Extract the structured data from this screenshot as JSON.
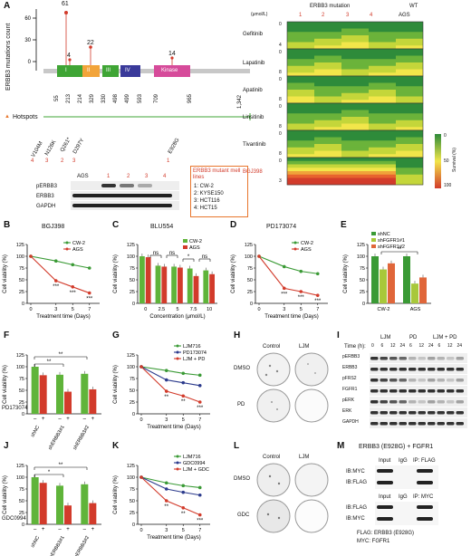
{
  "panels": {
    "A": {
      "label": "A",
      "ylabel": "ERBB3 mutations count",
      "peaks": [
        {
          "value": 61
        },
        {
          "value": 4
        },
        {
          "value": 22
        },
        {
          "value": 14
        }
      ],
      "peak_labels": [
        "61",
        "4",
        "22",
        "14"
      ],
      "positions": [
        "55",
        "213",
        "214",
        "329",
        "330",
        "498",
        "499",
        "593",
        "709",
        "965",
        "1,342"
      ],
      "domains": [
        {
          "name": "I",
          "color": "#3fa535"
        },
        {
          "name": "II",
          "color": "#f2a43a"
        },
        {
          "name": "III",
          "color": "#3fa535"
        },
        {
          "name": "IV",
          "color": "#3a3a9a"
        },
        {
          "name": "Kinase",
          "color": "#d64b9a"
        }
      ],
      "hotspots_label": "Hotspots",
      "hotspots": [
        "V104M",
        "N126K",
        "Q261*",
        "D297Y",
        "E928G"
      ],
      "hotspot_lines": [
        "4",
        "3",
        "2",
        "3",
        "1"
      ],
      "blot_labels": [
        "pERBB3",
        "ERBB3",
        "GAPDH"
      ],
      "blot_lanes": [
        "AGS",
        "1",
        "2",
        "3",
        "4"
      ],
      "mutant_box": {
        "title": "ERBB3 mutant mell lines",
        "lines": [
          "1: CW-2",
          "2: KYSE150",
          "3: HCT116",
          "4: HCT15"
        ]
      },
      "heatmap": {
        "header_mut": "ERBB3 mutation",
        "header_wt": "WT",
        "unit": "(μmol/L)",
        "columns": [
          "1",
          "2",
          "3",
          "4",
          "AGS"
        ],
        "drugs": [
          "Gefitinib",
          "Lapatinib",
          "Apatinib",
          "Linsitinib",
          "Tivantinib",
          "BGJ398"
        ],
        "conc": [
          [
            "0",
            "4"
          ],
          [
            "0",
            "8"
          ],
          [
            "0",
            "8"
          ],
          [
            "0",
            "8"
          ],
          [
            "0",
            "8"
          ],
          [
            "0",
            "3"
          ]
        ],
        "colorbar": [
          "0",
          "50",
          "100"
        ],
        "colorbar_title": "Survival (%)"
      }
    },
    "B": {
      "label": "B",
      "title": "BGJ398",
      "ylabel": "Cell viability (%)",
      "xlabel": "Treatment time (Days)"
    },
    "C": {
      "label": "C",
      "title": "BLU554",
      "ylabel": "Cell viability (%)",
      "xlabel": "Concentration (μmol/L)"
    },
    "D": {
      "label": "D",
      "title": "PD173074",
      "ylabel": "Cell viability (%)",
      "xlabel": "Treatment time (Days)"
    },
    "E": {
      "label": "E",
      "ylabel": "Cell viability (%)"
    },
    "F": {
      "label": "F",
      "ylabel": "Cell viability (%)",
      "treat": "PD173074",
      "minus": "–",
      "plus": "+"
    },
    "G": {
      "label": "G",
      "ylabel": "Cell viability (%)",
      "xlabel": "Treatment time (Days)"
    },
    "H": {
      "label": "H",
      "cols": [
        "Control",
        "LJM"
      ],
      "rows": [
        "DMSO",
        "PD"
      ]
    },
    "I": {
      "label": "I",
      "time_label": "Time (h):",
      "groups": [
        "LJM",
        "PD",
        "LJM + PD"
      ],
      "times": [
        "0",
        "6",
        "12",
        "24",
        "6",
        "12",
        "24",
        "6",
        "12",
        "24"
      ],
      "proteins": [
        "pERBB3",
        "ERBB3",
        "pFRS2",
        "FGFR1",
        "pERK",
        "ERK",
        "GAPDH"
      ]
    },
    "J": {
      "label": "J",
      "ylabel": "Cell viability (%)",
      "treat": "GDC0994",
      "minus": "–",
      "plus": "+"
    },
    "K": {
      "label": "K",
      "ylabel": "Cell viability (%)",
      "xlabel": "Treatment time (Days)"
    },
    "L": {
      "label": "L",
      "cols": [
        "Control",
        "LJM"
      ],
      "rows": [
        "DMSO",
        "GDC"
      ]
    },
    "M": {
      "label": "M",
      "title": "ERBB3 (E928G) + FGFR1",
      "top_header": [
        "Input",
        "IgG",
        "IP: FLAG"
      ],
      "top_rows": [
        "IB:MYC",
        "IB:FLAG"
      ],
      "bottom_header": [
        "Input",
        "IgG",
        "IP: MYC"
      ],
      "bottom_rows": [
        "IB:FLAG",
        "IB:MYC"
      ],
      "legend": [
        "FLAG: ERBB3 (E928G)",
        "MYC:  FGFR1"
      ]
    }
  },
  "chart_data": [
    {
      "panel": "B",
      "type": "line",
      "title": "BGJ398",
      "xlabel": "Treatment time (Days)",
      "ylabel": "Cell viability (%)",
      "x": [
        0,
        3,
        5,
        7
      ],
      "xticks": [
        "0",
        "3",
        "5",
        "7"
      ],
      "ylim": [
        0,
        125
      ],
      "yticks": [
        "0",
        "25",
        "50",
        "75",
        "100",
        "125"
      ],
      "series": [
        {
          "name": "CW-2",
          "color": "#3a9a35",
          "values": [
            100,
            90,
            82,
            75
          ]
        },
        {
          "name": "AGS",
          "color": "#d23b2b",
          "values": [
            100,
            48,
            35,
            22
          ]
        }
      ],
      "annotations": [
        "***",
        "***",
        "***"
      ]
    },
    {
      "panel": "C",
      "type": "bar",
      "title": "BLU554",
      "xlabel": "Concentration (μmol/L)",
      "ylabel": "Cell viability (%)",
      "categories": [
        "0",
        "2.5",
        "5",
        "7.5",
        "10"
      ],
      "ylim": [
        0,
        125
      ],
      "yticks": [
        "0",
        "25",
        "50",
        "75",
        "100",
        "125"
      ],
      "series": [
        {
          "name": "CW-2",
          "color": "#5fb43a",
          "values": [
            100,
            80,
            78,
            74,
            70
          ]
        },
        {
          "name": "AGS",
          "color": "#d23b2b",
          "values": [
            98,
            78,
            76,
            58,
            62
          ]
        }
      ],
      "annotations": [
        "ns",
        "ns",
        "*",
        "ns"
      ]
    },
    {
      "panel": "D",
      "type": "line",
      "title": "PD173074",
      "xlabel": "Treatment time (Days)",
      "ylabel": "Cell viability (%)",
      "x": [
        0,
        3,
        5,
        7
      ],
      "xticks": [
        "0",
        "3",
        "5",
        "7"
      ],
      "ylim": [
        0,
        125
      ],
      "yticks": [
        "0",
        "25",
        "50",
        "75",
        "100",
        "125"
      ],
      "series": [
        {
          "name": "CW-2",
          "color": "#3a9a35",
          "values": [
            100,
            78,
            68,
            63
          ]
        },
        {
          "name": "AGS",
          "color": "#d23b2b",
          "values": [
            100,
            32,
            25,
            17
          ]
        }
      ],
      "annotations": [
        "***",
        "***",
        "***"
      ]
    },
    {
      "panel": "E",
      "type": "bar",
      "ylabel": "Cell viability (%)",
      "categories": [
        "CW-2",
        "AGS"
      ],
      "ylim": [
        0,
        125
      ],
      "yticks": [
        "0",
        "25",
        "50",
        "75",
        "100",
        "125"
      ],
      "series": [
        {
          "name": "shNC",
          "color": "#3a9a35",
          "values": [
            100,
            100
          ]
        },
        {
          "name": "shFGFR1#1",
          "color": "#a8c83a",
          "values": [
            72,
            42
          ]
        },
        {
          "name": "shFGFR1#2",
          "color": "#e0663a",
          "values": [
            85,
            55
          ]
        }
      ],
      "annotations": [
        "**"
      ]
    },
    {
      "panel": "F",
      "type": "bar",
      "ylabel": "Cell viability (%)",
      "categories": [
        "shNC",
        "shERBB3#1",
        "shERBB3#2"
      ],
      "ylim": [
        0,
        125
      ],
      "yticks": [
        "0",
        "25",
        "50",
        "75",
        "100",
        "125"
      ],
      "series": [
        {
          "name": "–",
          "color": "#5fb43a",
          "values": [
            100,
            83,
            85
          ]
        },
        {
          "name": "+",
          "color": "#d23b2b",
          "values": [
            82,
            47,
            52
          ]
        }
      ],
      "annotations": [
        "**",
        "**"
      ]
    },
    {
      "panel": "G",
      "type": "line",
      "xlabel": "Treatment time (Days)",
      "ylabel": "Cell viability (%)",
      "x": [
        0,
        3,
        5,
        7
      ],
      "xticks": [
        "0",
        "3",
        "5",
        "7"
      ],
      "ylim": [
        0,
        125
      ],
      "yticks": [
        "0",
        "25",
        "50",
        "75",
        "100",
        "125"
      ],
      "series": [
        {
          "name": "LJM716",
          "color": "#3a9a35",
          "values": [
            100,
            92,
            86,
            82
          ]
        },
        {
          "name": "PD173074",
          "color": "#2b3a8c",
          "values": [
            100,
            72,
            66,
            60
          ]
        },
        {
          "name": "LJM + PD",
          "color": "#d23b2b",
          "values": [
            100,
            48,
            38,
            25
          ]
        }
      ],
      "annotations": [
        "**",
        "**",
        "***"
      ]
    },
    {
      "panel": "J",
      "type": "bar",
      "ylabel": "Cell viability (%)",
      "categories": [
        "shNC",
        "shERBB3#1",
        "shERBB3#2"
      ],
      "ylim": [
        0,
        125
      ],
      "yticks": [
        "0",
        "25",
        "50",
        "75",
        "100",
        "125"
      ],
      "series": [
        {
          "name": "–",
          "color": "#5fb43a",
          "values": [
            100,
            82,
            85
          ]
        },
        {
          "name": "+",
          "color": "#d23b2b",
          "values": [
            88,
            40,
            45
          ]
        }
      ],
      "annotations": [
        "*",
        "**"
      ]
    },
    {
      "panel": "K",
      "type": "line",
      "xlabel": "Treatment time (Days)",
      "ylabel": "Cell viability (%)",
      "x": [
        0,
        3,
        5,
        7
      ],
      "xticks": [
        "0",
        "3",
        "5",
        "7"
      ],
      "ylim": [
        0,
        125
      ],
      "yticks": [
        "0",
        "25",
        "50",
        "75",
        "100",
        "125"
      ],
      "series": [
        {
          "name": "LJM716",
          "color": "#3a9a35",
          "values": [
            100,
            88,
            82,
            78
          ]
        },
        {
          "name": "GDC0994",
          "color": "#2b3a8c",
          "values": [
            100,
            75,
            68,
            62
          ]
        },
        {
          "name": "LJM + GDC",
          "color": "#d23b2b",
          "values": [
            100,
            50,
            35,
            20
          ]
        }
      ],
      "annotations": [
        "**",
        "**",
        "***"
      ]
    }
  ]
}
